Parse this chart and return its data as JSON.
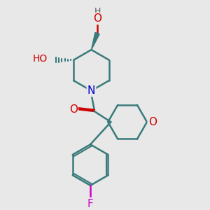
{
  "bg_color": "#e8e8e8",
  "line_color": "#3a7a7a",
  "bond_width": 1.8,
  "atom_colors": {
    "N": "#0000cc",
    "O": "#cc0000",
    "F": "#cc00cc",
    "H": "#555555",
    "C": "#3a7a7a"
  }
}
